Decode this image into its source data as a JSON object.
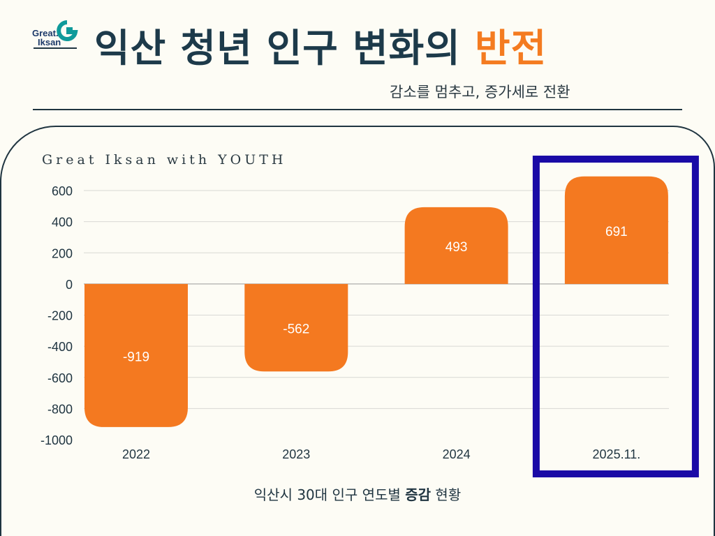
{
  "logo": {
    "text": "Great. Iksan",
    "colors": {
      "text": "#1d3a6a",
      "mark": "#0f9a9a"
    }
  },
  "header": {
    "title_main": "익산 청년 인구 변화의",
    "title_highlight": "반전",
    "subtitle": "감소를 멈추고, 증가세로 전환"
  },
  "brand_text": "Great Iksan with YOUTH",
  "caption": {
    "before": "익산시 30대 인구 연도별 ",
    "bold": "증감",
    "after": " 현황"
  },
  "colors": {
    "bar": "#f47920",
    "highlight_box": "#1a0aa6",
    "title": "#1d3a4a",
    "accent": "#f47b20"
  },
  "chart_data": {
    "type": "bar",
    "categories": [
      "2022",
      "2023",
      "2024",
      "2025.11."
    ],
    "values": [
      -919,
      -562,
      493,
      691
    ],
    "ylim": [
      -1000,
      600
    ],
    "yticks": [
      600,
      400,
      200,
      0,
      -200,
      -400,
      -600,
      -800,
      -1000
    ],
    "grid": true,
    "highlighted_category": "2025.11.",
    "data_labels": true
  }
}
